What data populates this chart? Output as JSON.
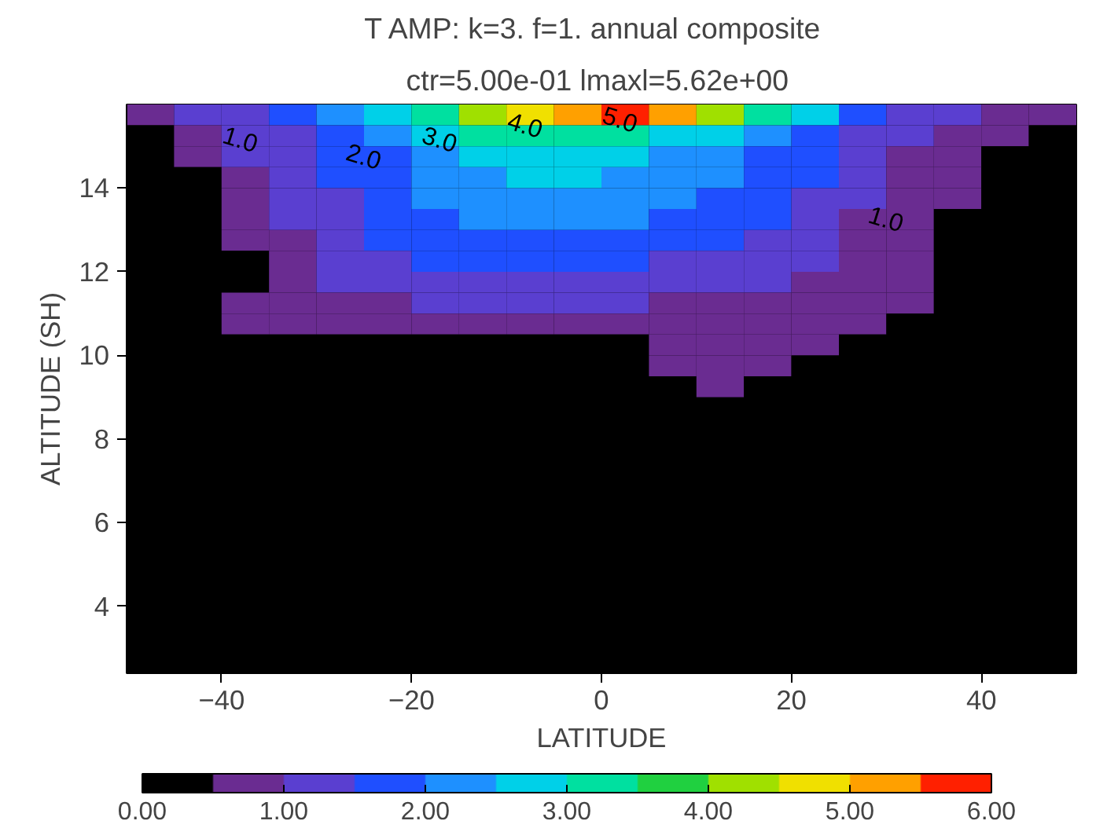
{
  "chart_data": {
    "type": "heatmap",
    "title": "T AMP:  k=3.  f=1. annual composite",
    "subtitle": "ctr=5.00e-01  lmaxl=5.62e+00",
    "xlabel": "LATITUDE",
    "ylabel": "ALTITUDE (SH)",
    "x": [
      -47.5,
      -42.5,
      -37.5,
      -32.5,
      -27.5,
      -22.5,
      -17.5,
      -12.5,
      -7.5,
      -2.5,
      2.5,
      7.5,
      12.5,
      17.5,
      22.5,
      27.5,
      32.5,
      37.5,
      42.5,
      47.5
    ],
    "y": [
      15.75,
      15.25,
      14.75,
      14.25,
      13.75,
      13.25,
      12.75,
      12.25,
      11.75,
      11.25,
      10.75,
      10.25,
      9.75,
      9.25,
      8.75,
      8.25,
      7.75,
      7.25,
      6.75,
      6.25,
      5.75,
      5.25,
      4.75,
      4.25,
      3.75,
      3.25,
      2.75
    ],
    "cells": [
      [
        0.6,
        1.0,
        1.3,
        1.6,
        2.0,
        2.5,
        3.2,
        4.0,
        4.7,
        5.3,
        5.5,
        5.0,
        4.2,
        3.3,
        2.5,
        1.8,
        1.4,
        1.1,
        0.9,
        0.6
      ],
      [
        0,
        0.8,
        1.1,
        1.4,
        1.7,
        2.1,
        2.6,
        3.1,
        3.4,
        3.4,
        3.1,
        2.9,
        2.6,
        2.2,
        1.8,
        1.4,
        1.1,
        0.9,
        0.7,
        0
      ],
      [
        0,
        0.6,
        1.0,
        1.3,
        1.6,
        1.9,
        2.3,
        2.6,
        2.8,
        2.8,
        2.6,
        2.4,
        2.2,
        1.9,
        1.6,
        1.2,
        0.9,
        0.7,
        0,
        0
      ],
      [
        0,
        0,
        0.9,
        1.2,
        1.5,
        1.8,
        2.1,
        2.4,
        2.5,
        2.5,
        2.3,
        2.2,
        2.0,
        1.8,
        1.5,
        1.1,
        0.8,
        0.6,
        0,
        0
      ],
      [
        0,
        0,
        0.7,
        1.1,
        1.4,
        1.7,
        2.0,
        2.2,
        2.3,
        2.3,
        2.2,
        2.1,
        1.9,
        1.7,
        1.3,
        1.0,
        0.7,
        0.6,
        0,
        0
      ],
      [
        0,
        0,
        0.6,
        1.0,
        1.3,
        1.6,
        1.8,
        2.0,
        2.1,
        2.1,
        2.0,
        1.9,
        1.8,
        1.5,
        1.2,
        0.9,
        0.6,
        0,
        0,
        0
      ],
      [
        0,
        0,
        0.6,
        0.9,
        1.2,
        1.5,
        1.7,
        1.8,
        1.9,
        1.9,
        1.8,
        1.7,
        1.6,
        1.4,
        1.1,
        0.8,
        0.6,
        0,
        0,
        0
      ],
      [
        0,
        0,
        0,
        0.8,
        1.1,
        1.3,
        1.5,
        1.6,
        1.6,
        1.6,
        1.5,
        1.4,
        1.3,
        1.2,
        1.0,
        0.7,
        0.6,
        0,
        0,
        0
      ],
      [
        0,
        0,
        0,
        0.7,
        1.0,
        1.2,
        1.3,
        1.4,
        1.4,
        1.4,
        1.3,
        1.3,
        1.2,
        1.1,
        0.9,
        0.7,
        0.6,
        0,
        0,
        0
      ],
      [
        0,
        0,
        0.6,
        0.8,
        0.9,
        0.9,
        1.0,
        1.0,
        1.0,
        1.0,
        1.0,
        0.9,
        0.9,
        0.9,
        0.8,
        0.7,
        0.6,
        0,
        0,
        0
      ],
      [
        0,
        0,
        0.6,
        0.7,
        0.7,
        0.8,
        0.8,
        0.8,
        0.8,
        0.8,
        0.8,
        0.8,
        0.8,
        0.8,
        0.7,
        0.6,
        0,
        0,
        0,
        0
      ],
      [
        0,
        0,
        0,
        0,
        0,
        0,
        0,
        0,
        0,
        0,
        0,
        0.7,
        0.7,
        0.7,
        0.6,
        0,
        0,
        0,
        0,
        0
      ],
      [
        0,
        0,
        0,
        0,
        0,
        0,
        0,
        0,
        0,
        0,
        0,
        0.6,
        0.6,
        0.6,
        0,
        0,
        0,
        0,
        0,
        0
      ],
      [
        0,
        0,
        0,
        0,
        0,
        0,
        0,
        0,
        0,
        0,
        0,
        0,
        0.5,
        0,
        0,
        0,
        0,
        0,
        0,
        0
      ],
      [
        0,
        0,
        0,
        0,
        0,
        0,
        0,
        0,
        0,
        0,
        0,
        0,
        0,
        0,
        0,
        0,
        0,
        0,
        0,
        0
      ],
      [
        0,
        0,
        0,
        0,
        0,
        0,
        0,
        0,
        0,
        0,
        0,
        0,
        0,
        0,
        0,
        0,
        0,
        0,
        0,
        0
      ],
      [
        0,
        0,
        0,
        0,
        0,
        0,
        0,
        0,
        0,
        0,
        0,
        0,
        0,
        0,
        0,
        0,
        0,
        0,
        0,
        0
      ],
      [
        0,
        0,
        0,
        0,
        0,
        0,
        0,
        0,
        0,
        0,
        0,
        0,
        0,
        0,
        0,
        0,
        0,
        0,
        0,
        0
      ],
      [
        0,
        0,
        0,
        0,
        0,
        0,
        0,
        0,
        0,
        0,
        0,
        0,
        0,
        0,
        0,
        0,
        0,
        0,
        0,
        0
      ],
      [
        0,
        0,
        0,
        0,
        0,
        0,
        0,
        0,
        0,
        0,
        0,
        0,
        0,
        0,
        0,
        0,
        0,
        0,
        0,
        0
      ],
      [
        0,
        0,
        0,
        0,
        0,
        0,
        0,
        0,
        0,
        0,
        0,
        0,
        0,
        0,
        0,
        0,
        0,
        0,
        0,
        0
      ],
      [
        0,
        0,
        0,
        0,
        0,
        0,
        0,
        0,
        0,
        0,
        0,
        0,
        0,
        0,
        0,
        0,
        0,
        0,
        0,
        0
      ],
      [
        0,
        0,
        0,
        0,
        0,
        0,
        0,
        0,
        0,
        0,
        0,
        0,
        0,
        0,
        0,
        0,
        0,
        0,
        0,
        0
      ],
      [
        0,
        0,
        0,
        0,
        0,
        0,
        0,
        0,
        0,
        0,
        0,
        0,
        0,
        0,
        0,
        0,
        0,
        0,
        0,
        0
      ],
      [
        0,
        0,
        0,
        0,
        0,
        0,
        0,
        0,
        0,
        0,
        0,
        0,
        0,
        0,
        0,
        0,
        0,
        0,
        0,
        0
      ],
      [
        0,
        0,
        0,
        0,
        0,
        0,
        0,
        0,
        0,
        0,
        0,
        0,
        0,
        0,
        0,
        0,
        0,
        0,
        0,
        0
      ],
      [
        0,
        0,
        0,
        0,
        0,
        0,
        0,
        0,
        0,
        0,
        0,
        0,
        0,
        0,
        0,
        0,
        0,
        0,
        0,
        0
      ]
    ],
    "colors": [
      "#000000",
      "#6a2c91",
      "#5a3fd0",
      "#1f4fff",
      "#1e90ff",
      "#00d0e8",
      "#00e0a0",
      "#20d040",
      "#a0e000",
      "#f0e000",
      "#ffa000",
      "#ff2000"
    ],
    "xlim": [
      -50,
      50
    ],
    "ylim": [
      2.4,
      16
    ],
    "xticks": [
      -40,
      -20,
      0,
      20,
      40
    ],
    "yticks": [
      4,
      6,
      8,
      10,
      12,
      14
    ],
    "clim": [
      0,
      6
    ],
    "cticks": [
      {
        "value": 0,
        "label": "0.00"
      },
      {
        "value": 1,
        "label": "1.00"
      },
      {
        "value": 2,
        "label": "2.00"
      },
      {
        "value": 3,
        "label": "3.00"
      },
      {
        "value": 4,
        "label": "4.00"
      },
      {
        "value": 5,
        "label": "5.00"
      },
      {
        "value": 6,
        "label": "6.00"
      }
    ],
    "annotations": [
      "1.0",
      "2.0",
      "3.0",
      "4.0",
      "5.0",
      "1.0"
    ],
    "grid": false
  }
}
